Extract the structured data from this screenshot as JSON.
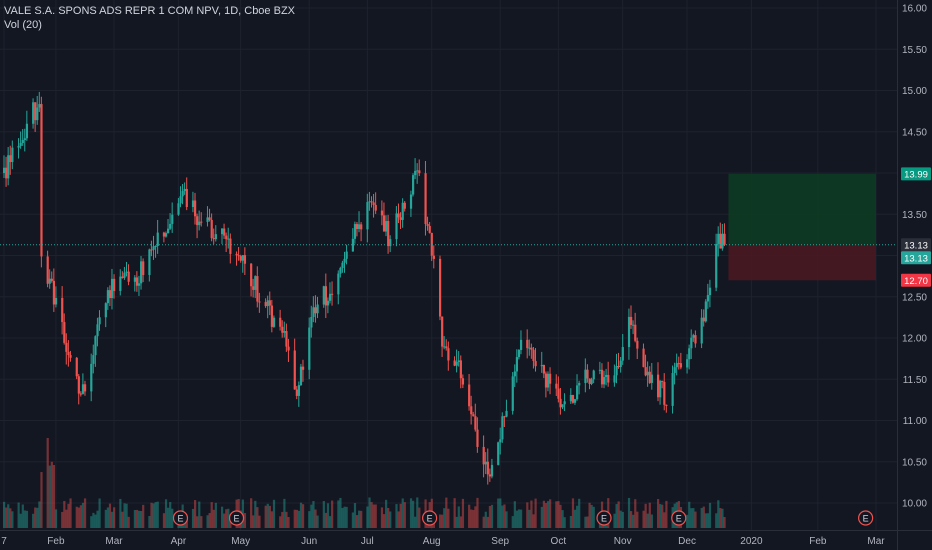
{
  "header": {
    "symbol_line": "VALE S.A. SPONS ADS REPR 1 COM NPV, 1D, Cboe BZX",
    "volume_label": "Vol (20)"
  },
  "chart_data": {
    "type": "candlestick",
    "symbol": "VALE S.A. SPONS ADS REPR 1 COM NPV",
    "interval": "1D",
    "exchange": "Cboe BZX",
    "y_range": [
      9.8,
      16.1
    ],
    "y_ticks": [
      "16.00",
      "15.50",
      "15.00",
      "14.50",
      "14.00",
      "13.50",
      "13.00",
      "12.50",
      "12.00",
      "11.50",
      "11.00",
      "10.50",
      "10.00"
    ],
    "x_labels": [
      {
        "label": "7",
        "date": "2019-01-07"
      },
      {
        "label": "Feb",
        "date": "2019-02-01"
      },
      {
        "label": "Mar",
        "date": "2019-03-01"
      },
      {
        "label": "Apr",
        "date": "2019-04-01"
      },
      {
        "label": "May",
        "date": "2019-05-01"
      },
      {
        "label": "Jun",
        "date": "2019-06-03"
      },
      {
        "label": "Jul",
        "date": "2019-07-01"
      },
      {
        "label": "Aug",
        "date": "2019-08-01"
      },
      {
        "label": "Sep",
        "date": "2019-09-03"
      },
      {
        "label": "Oct",
        "date": "2019-10-01"
      },
      {
        "label": "Nov",
        "date": "2019-11-01"
      },
      {
        "label": "Dec",
        "date": "2019-12-02"
      },
      {
        "label": "2020",
        "date": "2020-01-02"
      },
      {
        "label": "Feb",
        "date": "2020-02-03"
      },
      {
        "label": "Mar",
        "date": "2020-03-02"
      }
    ],
    "x_range": [
      "2019-01-07",
      "2020-03-02"
    ],
    "close_path": [
      {
        "date": "2019-01-07",
        "close": 14.0
      },
      {
        "date": "2019-01-14",
        "close": 14.3
      },
      {
        "date": "2019-01-24",
        "close": 14.9
      },
      {
        "date": "2019-01-25",
        "close": 13.0
      },
      {
        "date": "2019-02-01",
        "close": 12.4
      },
      {
        "date": "2019-02-13",
        "close": 11.2
      },
      {
        "date": "2019-02-26",
        "close": 12.6
      },
      {
        "date": "2019-03-12",
        "close": 12.7
      },
      {
        "date": "2019-03-27",
        "close": 13.4
      },
      {
        "date": "2019-04-04",
        "close": 13.7
      },
      {
        "date": "2019-04-16",
        "close": 13.3
      },
      {
        "date": "2019-04-25",
        "close": 13.2
      },
      {
        "date": "2019-05-06",
        "close": 12.7
      },
      {
        "date": "2019-05-22",
        "close": 12.0
      },
      {
        "date": "2019-05-28",
        "close": 11.4
      },
      {
        "date": "2019-06-06",
        "close": 12.4
      },
      {
        "date": "2019-06-14",
        "close": 12.6
      },
      {
        "date": "2019-06-24",
        "close": 13.3
      },
      {
        "date": "2019-07-03",
        "close": 13.6
      },
      {
        "date": "2019-07-12",
        "close": 13.2
      },
      {
        "date": "2019-07-19",
        "close": 13.7
      },
      {
        "date": "2019-07-25",
        "close": 14.0
      },
      {
        "date": "2019-08-01",
        "close": 13.1
      },
      {
        "date": "2019-08-06",
        "close": 12.0
      },
      {
        "date": "2019-08-15",
        "close": 11.6
      },
      {
        "date": "2019-08-23",
        "close": 10.8
      },
      {
        "date": "2019-08-29",
        "close": 10.4
      },
      {
        "date": "2019-09-06",
        "close": 11.2
      },
      {
        "date": "2019-09-13",
        "close": 12.0
      },
      {
        "date": "2019-09-23",
        "close": 11.6
      },
      {
        "date": "2019-10-03",
        "close": 11.1
      },
      {
        "date": "2019-10-15",
        "close": 11.6
      },
      {
        "date": "2019-10-25",
        "close": 11.4
      },
      {
        "date": "2019-11-05",
        "close": 12.2
      },
      {
        "date": "2019-11-13",
        "close": 11.5
      },
      {
        "date": "2019-11-22",
        "close": 11.3
      },
      {
        "date": "2019-12-03",
        "close": 11.9
      },
      {
        "date": "2019-12-10",
        "close": 12.3
      },
      {
        "date": "2019-12-17",
        "close": 13.2
      },
      {
        "date": "2019-12-20",
        "close": 13.13
      }
    ],
    "last_price": "13.13",
    "position_tool": {
      "target": "13.99",
      "entry": "13.13",
      "stop": "12.70",
      "start_date": "2019-12-20",
      "end_date": "2020-03-02"
    },
    "earnings_markers": [
      {
        "label": "E",
        "date": "2019-04-02"
      },
      {
        "label": "E",
        "date": "2019-04-29"
      },
      {
        "label": "E",
        "date": "2019-07-31"
      },
      {
        "label": "E",
        "date": "2019-10-23"
      },
      {
        "label": "E",
        "date": "2019-11-28"
      },
      {
        "label": "E",
        "date": "2020-02-26"
      }
    ],
    "volume": {
      "relative_peak_date": "2019-01-28"
    },
    "colors": {
      "up": "#26a69a",
      "down": "#ef5350",
      "background": "#131722",
      "grid": "#1e222d",
      "axis_text": "#b2b5be",
      "target_zone": "#0d3b22",
      "stop_zone": "#4a1820",
      "target_badge": "#089981",
      "stop_badge": "#f23645",
      "last_badge": "#2a2e39",
      "entry_badge": "#26a69a",
      "price_line": "#26a69a"
    }
  }
}
